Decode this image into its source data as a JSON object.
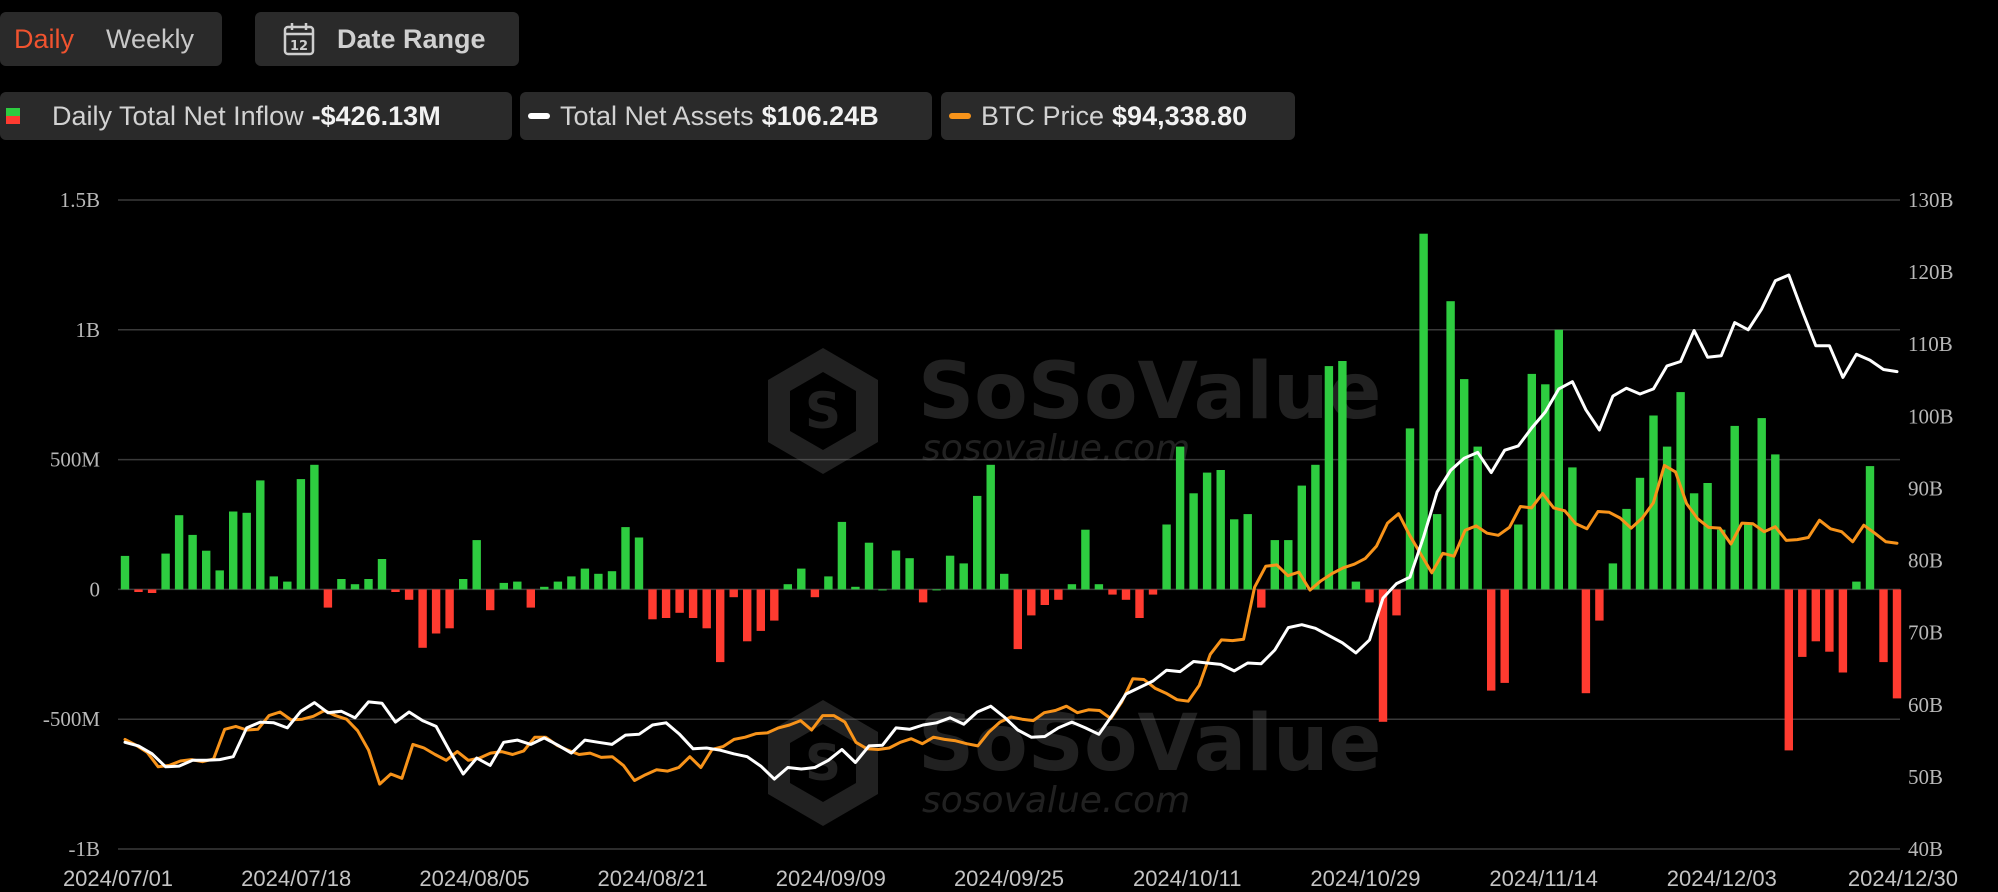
{
  "controls": {
    "tab_daily": "Daily",
    "tab_weekly": "Weekly",
    "date_range_label": "Date Range",
    "calendar_day": "12",
    "active_tab": "Daily"
  },
  "legend": [
    {
      "label": "Daily Total Net Inflow",
      "value": "-$426.13M",
      "swatch": "bar",
      "colors": [
        "#2ecc40",
        "#ff3b30"
      ]
    },
    {
      "label": "Total Net Assets",
      "value": "$106.24B",
      "swatch": "line",
      "color": "#ffffff"
    },
    {
      "label": "BTC Price",
      "value": "$94,338.80",
      "swatch": "line",
      "color": "#f7931a"
    }
  ],
  "watermark": {
    "brand": "SoSoValue",
    "url": "sosovalue.com"
  },
  "colors": {
    "positive": "#2ecc40",
    "negative": "#ff3b30",
    "assets": "#ffffff",
    "btc": "#f7931a",
    "grid": "#3a3a3a",
    "accent": "#f0532f"
  },
  "chart_data": {
    "type": "bar",
    "x_ticks": [
      "2024/07/01",
      "2024/07/18",
      "2024/08/05",
      "2024/08/21",
      "2024/09/09",
      "2024/09/25",
      "2024/10/11",
      "2024/10/29",
      "2024/11/14",
      "2024/12/03",
      "2024/12/30"
    ],
    "left_axis": {
      "ticks": [
        "1.5B",
        "1B",
        "500M",
        "0",
        "-500M",
        "-1B"
      ],
      "range": [
        -1000,
        1500
      ],
      "unit": "M USD"
    },
    "right_axis": {
      "ticks": [
        "130B",
        "120B",
        "110B",
        "100B",
        "90B",
        "80B",
        "70B",
        "60B",
        "50B",
        "40B"
      ],
      "range": [
        40,
        130
      ],
      "unit": "B USD"
    },
    "series": [
      {
        "name": "Daily Total Net Inflow",
        "type": "bar",
        "axis": "left",
        "values": [
          129,
          -10,
          -14,
          138,
          286,
          210,
          149,
          73,
          300,
          295,
          420,
          50,
          30,
          425,
          480,
          -70,
          40,
          20,
          40,
          117,
          -10,
          -40,
          -225,
          -170,
          -150,
          40,
          190,
          -80,
          25,
          30,
          -70,
          10,
          30,
          50,
          80,
          60,
          70,
          240,
          200,
          -115,
          -110,
          -90,
          -110,
          -150,
          -280,
          -30,
          -200,
          -160,
          -120,
          20,
          80,
          -30,
          50,
          260,
          10,
          180,
          0,
          150,
          120,
          -50,
          0,
          130,
          100,
          360,
          480,
          60,
          -230,
          -100,
          -60,
          -40,
          20,
          230,
          20,
          -20,
          -40,
          -110,
          -20,
          250,
          550,
          370,
          450,
          460,
          270,
          290,
          -70,
          190,
          190,
          400,
          480,
          860,
          880,
          30,
          -50,
          -510,
          -100,
          620,
          1370,
          290,
          1110,
          810,
          550,
          -390,
          -360,
          250,
          830,
          790,
          1000,
          470,
          -400,
          -120,
          100,
          310,
          430,
          670,
          550,
          760,
          370,
          410,
          230,
          630,
          250,
          660,
          520,
          -620,
          -260,
          -200,
          -240,
          -320,
          30,
          475,
          -280,
          -420
        ]
      },
      {
        "name": "Total Net Assets",
        "type": "line",
        "axis": "right",
        "values": [
          54.8,
          54.3,
          53.2,
          51.4,
          51.5,
          52.3,
          52.3,
          52.4,
          52.8,
          56.8,
          57.6,
          57.5,
          56.8,
          59.1,
          60.3,
          58.9,
          59.1,
          58.2,
          60.4,
          60.2,
          57.6,
          59.0,
          57.8,
          57.0,
          53.6,
          50.4,
          52.6,
          51.6,
          54.8,
          55.1,
          54.5,
          55.4,
          54.4,
          53.3,
          55.1,
          54.8,
          54.5,
          55.8,
          55.9,
          57.2,
          57.5,
          55.9,
          53.9,
          54.0,
          53.7,
          53.2,
          52.8,
          51.5,
          49.7,
          51.3,
          51.1,
          51.3,
          52.3,
          53.8,
          52.0,
          54.3,
          54.4,
          56.8,
          56.6,
          57.2,
          57.5,
          58.2,
          57.3,
          59.0,
          59.8,
          58.3,
          56.5,
          55.5,
          55.6,
          56.8,
          57.6,
          56.8,
          55.9,
          58.6,
          61.5,
          62.4,
          63.3,
          64.8,
          64.6,
          66.0,
          65.8,
          65.6,
          64.7,
          65.8,
          65.7,
          67.6,
          70.7,
          71.1,
          70.6,
          69.6,
          68.6,
          67.2,
          69.0,
          74.8,
          76.8,
          77.7,
          83.3,
          89.5,
          92.5,
          94.2,
          95.0,
          92.2,
          95.3,
          95.9,
          98.4,
          100.6,
          103.8,
          104.8,
          100.9,
          98.1,
          102.8,
          103.9,
          103.1,
          103.8,
          107.0,
          107.6,
          111.9,
          108.2,
          108.4,
          113.0,
          112.0,
          114.9,
          118.8,
          119.6,
          114.6,
          109.8,
          109.8,
          105.4,
          108.6,
          107.8,
          106.5,
          106.2
        ]
      },
      {
        "name": "BTC Price",
        "type": "line",
        "axis": "right",
        "values": [
          55.2,
          54.4,
          53.4,
          51.4,
          51.6,
          52.2,
          52.4,
          52.1,
          52.5,
          56.6,
          57.0,
          56.5,
          56.6,
          58.5,
          59.0,
          57.9,
          58.0,
          58.4,
          59.2,
          58.5,
          58.0,
          56.4,
          53.7,
          49.0,
          50.4,
          49.8,
          54.5,
          54.0,
          53.1,
          52.3,
          53.5,
          52.3,
          52.6,
          53.3,
          53.5,
          53.1,
          53.6,
          55.5,
          55.5,
          54.4,
          53.7,
          53.1,
          53.3,
          52.7,
          52.8,
          51.6,
          49.5,
          50.3,
          51.0,
          50.8,
          51.3,
          52.8,
          51.3,
          53.8,
          54.2,
          55.2,
          55.5,
          56.0,
          56.1,
          56.8,
          57.2,
          57.8,
          56.5,
          58.5,
          58.5,
          57.6,
          54.8,
          53.9,
          53.8,
          54.0,
          54.8,
          55.3,
          54.6,
          55.5,
          55.2,
          55.0,
          54.6,
          54.3,
          56.2,
          57.6,
          58.3,
          58.0,
          57.8,
          58.9,
          59.2,
          59.8,
          58.9,
          59.3,
          59.2,
          58.1,
          60.4,
          63.6,
          63.5,
          62.3,
          61.6,
          60.7,
          60.5,
          62.7,
          67.0,
          69.0,
          68.9,
          69.1,
          76.3,
          79.2,
          79.4,
          77.9,
          78.4,
          75.9,
          77.2,
          78.2,
          79.0,
          79.5,
          80.3,
          82.0,
          85.2,
          86.5,
          83.5,
          80.9,
          78.3,
          81.0,
          80.6,
          84.2,
          84.8,
          83.8,
          83.5,
          84.6,
          87.5,
          87.3,
          89.3,
          87.3,
          86.9,
          85.1,
          84.4,
          86.8,
          86.7,
          85.9,
          84.5,
          85.9,
          88.0,
          93.2,
          92.3,
          87.9,
          85.8,
          84.6,
          84.5,
          82.3,
          85.2,
          85.1,
          84.0,
          84.7,
          82.8,
          82.9,
          83.2,
          85.6,
          84.4,
          84.0,
          82.6,
          84.9,
          83.8,
          82.6,
          82.4
        ]
      }
    ],
    "legend_position": "top-left",
    "grid": true
  }
}
